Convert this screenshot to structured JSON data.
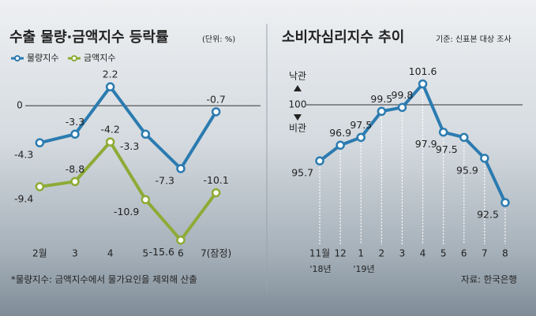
{
  "chart_data": [
    {
      "type": "line",
      "title": "수출 물량·금액지수 등락률",
      "subtitle": "(단위: %)",
      "categories": [
        "2월",
        "3",
        "4",
        "5",
        "6",
        "7(잠정)"
      ],
      "series": [
        {
          "name": "물량지수",
          "color": "#2b7bb0",
          "values": [
            -4.3,
            -3.3,
            2.2,
            -3.3,
            -7.3,
            -0.7
          ]
        },
        {
          "name": "금액지수",
          "color": "#8dab36",
          "values": [
            -9.4,
            -8.8,
            -4.2,
            -10.9,
            -15.6,
            -10.1
          ]
        }
      ],
      "ylim": [
        -17,
        4.5
      ],
      "yticks": [
        0
      ],
      "footnote": "*물량지수: 금액지수에서 물가요인을 제외해 산출"
    },
    {
      "type": "line",
      "title": "소비자심리지수 추이",
      "subtitle": "기준: 신표본 대상 조사",
      "categories": [
        "11월",
        "12",
        "1",
        "2",
        "3",
        "4",
        "5",
        "6",
        "7",
        "8"
      ],
      "year_labels": [
        "'18년",
        "'19년"
      ],
      "values": [
        95.7,
        96.9,
        97.5,
        99.5,
        99.8,
        101.6,
        97.9,
        97.5,
        95.9,
        92.5
      ],
      "color": "#2b7bb0",
      "ylim": [
        88.7,
        102.9
      ],
      "yticks": [
        100
      ],
      "reference_labels": [
        "낙관",
        "비관"
      ],
      "drop_lines": true,
      "source": "자료: 한국은행"
    }
  ]
}
